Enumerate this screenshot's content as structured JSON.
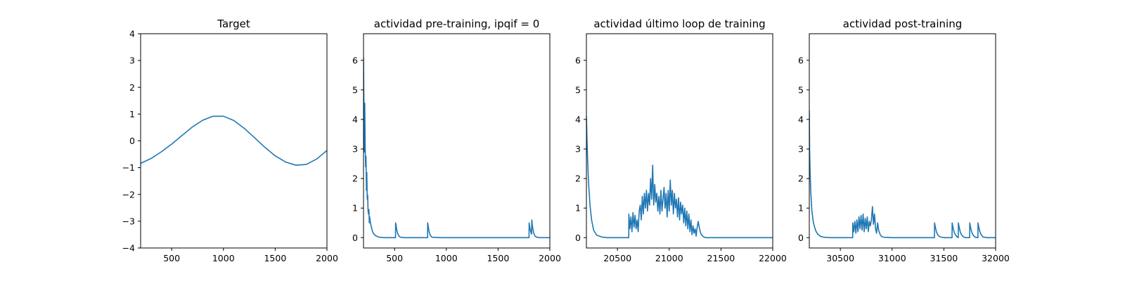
{
  "figure": {
    "background": "#ffffff",
    "line_color": "#1f77b4"
  },
  "chart_data": [
    {
      "type": "line",
      "title": "Target",
      "xlabel": "",
      "ylabel": "",
      "xlim": [
        200,
        2000
      ],
      "ylim": [
        -4,
        4
      ],
      "xticks": [
        500,
        1000,
        1500,
        2000
      ],
      "yticks": [
        -4,
        -3,
        -2,
        -1,
        0,
        1,
        2,
        3,
        4
      ],
      "series": [
        {
          "x": [
            200,
            300,
            400,
            500,
            600,
            700,
            800,
            900,
            1000,
            1100,
            1200,
            1300,
            1400,
            1500,
            1600,
            1700,
            1800,
            1900,
            2000
          ],
          "y": [
            -0.84,
            -0.66,
            -0.41,
            -0.12,
            0.2,
            0.52,
            0.77,
            0.92,
            0.92,
            0.76,
            0.47,
            0.12,
            -0.24,
            -0.56,
            -0.79,
            -0.91,
            -0.88,
            -0.68,
            -0.36
          ]
        }
      ]
    },
    {
      "type": "line",
      "title": "actividad pre-training, ipqif = 0",
      "xlabel": "",
      "ylabel": "",
      "xlim": [
        200,
        2000
      ],
      "ylim": [
        -0.35,
        6.9
      ],
      "xticks": [
        500,
        1000,
        1500,
        2000
      ],
      "yticks": [
        0,
        1,
        2,
        3,
        4,
        5,
        6
      ],
      "series": [
        {
          "x": [
            200,
            204,
            208,
            212,
            216,
            220,
            224,
            228,
            232,
            236,
            240,
            244,
            248,
            252,
            256,
            260,
            265,
            270,
            280,
            290,
            300,
            320,
            340,
            360,
            400,
            450,
            509,
            510,
            515,
            520,
            530,
            545,
            560,
            600,
            700,
            819,
            820,
            825,
            830,
            840,
            855,
            870,
            950,
            1100,
            1300,
            1500,
            1700,
            1799,
            1800,
            1805,
            1812,
            1820,
            1824,
            1826,
            1830,
            1836,
            1844,
            1855,
            1870,
            1900,
            1950,
            2000
          ],
          "y": [
            6.1,
            4.3,
            2.9,
            4.55,
            3.1,
            2.4,
            2.75,
            1.6,
            2.2,
            1.3,
            1.45,
            0.9,
            0.8,
            0.95,
            0.5,
            0.7,
            0.55,
            0.45,
            0.3,
            0.18,
            0.12,
            0.06,
            0.03,
            0.01,
            0.0,
            0.0,
            0.0,
            0.5,
            0.42,
            0.28,
            0.14,
            0.04,
            0.01,
            0.0,
            0.0,
            0.0,
            0.5,
            0.4,
            0.27,
            0.12,
            0.03,
            0.01,
            0.0,
            0.0,
            0.0,
            0.0,
            0.0,
            0.0,
            0.5,
            0.38,
            0.25,
            0.15,
            0.12,
            0.6,
            0.45,
            0.3,
            0.16,
            0.06,
            0.02,
            0.0,
            0.0,
            0.0
          ]
        }
      ]
    },
    {
      "type": "line",
      "title": "actividad último loop de training",
      "xlabel": "",
      "ylabel": "",
      "xlim": [
        20200,
        22000
      ],
      "ylim": [
        -0.35,
        6.9
      ],
      "xticks": [
        20500,
        21000,
        21500,
        22000
      ],
      "yticks": [
        0,
        1,
        2,
        3,
        4,
        5,
        6
      ],
      "series": [
        {
          "x": [
            20200,
            20205,
            20212,
            20220,
            20235,
            20250,
            20270,
            20300,
            20350,
            20400,
            20500,
            20609,
            20610,
            20620,
            20630,
            20640,
            20650,
            20660,
            20670,
            20680,
            20690,
            20700,
            20710,
            20720,
            20730,
            20740,
            20750,
            20760,
            20770,
            20780,
            20790,
            20800,
            20810,
            20820,
            20830,
            20840,
            20850,
            20860,
            20870,
            20880,
            20890,
            20900,
            20910,
            20920,
            20930,
            20940,
            20950,
            20960,
            20970,
            20980,
            20990,
            21000,
            21010,
            21020,
            21030,
            21040,
            21050,
            21060,
            21070,
            21080,
            21090,
            21100,
            21110,
            21120,
            21130,
            21140,
            21150,
            21160,
            21170,
            21180,
            21190,
            21200,
            21210,
            21220,
            21230,
            21240,
            21250,
            21260,
            21270,
            21280,
            21290,
            21300,
            21310,
            21330,
            21350,
            21400,
            21500,
            21700,
            22000
          ],
          "y": [
            4.1,
            3.4,
            2.6,
            1.9,
            1.1,
            0.6,
            0.25,
            0.08,
            0.02,
            0.0,
            0.0,
            0.0,
            0.8,
            0.3,
            0.7,
            0.2,
            0.85,
            0.35,
            0.75,
            0.3,
            0.6,
            0.2,
            0.9,
            1.1,
            0.6,
            1.4,
            0.8,
            1.5,
            1.0,
            1.6,
            0.9,
            1.5,
            1.1,
            2.0,
            1.3,
            2.45,
            1.1,
            1.8,
            1.2,
            1.5,
            0.9,
            1.4,
            0.8,
            1.6,
            0.9,
            1.3,
            1.7,
            1.0,
            1.5,
            0.7,
            1.6,
            0.9,
            1.95,
            1.1,
            1.6,
            0.8,
            1.5,
            1.0,
            1.3,
            0.7,
            1.35,
            0.6,
            1.2,
            0.8,
            1.1,
            0.5,
            1.0,
            0.4,
            0.9,
            0.3,
            0.8,
            0.2,
            0.6,
            0.1,
            0.4,
            0.15,
            0.3,
            0.05,
            0.35,
            0.55,
            0.35,
            0.2,
            0.1,
            0.03,
            0.0,
            0.0,
            0.0,
            0.0,
            0.0
          ]
        }
      ]
    },
    {
      "type": "line",
      "title": "actividad post-training",
      "xlabel": "",
      "ylabel": "",
      "xlim": [
        30200,
        32000
      ],
      "ylim": [
        -0.35,
        6.9
      ],
      "xticks": [
        30500,
        31000,
        31500,
        32000
      ],
      "yticks": [
        0,
        1,
        2,
        3,
        4,
        5,
        6
      ],
      "series": [
        {
          "x": [
            30200,
            30203,
            30208,
            30215,
            30225,
            30240,
            30260,
            30280,
            30310,
            30350,
            30400,
            30500,
            30619,
            30620,
            30630,
            30640,
            30650,
            30660,
            30670,
            30680,
            30690,
            30700,
            30710,
            30720,
            30730,
            30740,
            30750,
            30760,
            30770,
            30780,
            30790,
            30800,
            30810,
            30820,
            30830,
            30840,
            30850,
            30860,
            30870,
            30885,
            30900,
            30930,
            31000,
            31200,
            31409,
            31410,
            31418,
            31428,
            31440,
            31460,
            31500,
            31579,
            31580,
            31588,
            31598,
            31610,
            31630,
            31639,
            31640,
            31648,
            31658,
            31670,
            31690,
            31720,
            31749,
            31750,
            31758,
            31768,
            31780,
            31800,
            31829,
            31830,
            31838,
            31848,
            31860,
            31880,
            31920,
            32000
          ],
          "y": [
            4.3,
            3.0,
            2.2,
            1.5,
            0.9,
            0.5,
            0.25,
            0.12,
            0.04,
            0.01,
            0.0,
            0.0,
            0.0,
            0.5,
            0.2,
            0.55,
            0.15,
            0.6,
            0.2,
            0.7,
            0.3,
            0.75,
            0.25,
            0.8,
            0.2,
            0.65,
            0.3,
            0.7,
            0.2,
            0.55,
            0.4,
            0.6,
            1.05,
            0.45,
            0.8,
            0.3,
            0.15,
            0.5,
            0.25,
            0.1,
            0.03,
            0.01,
            0.0,
            0.0,
            0.0,
            0.5,
            0.35,
            0.2,
            0.1,
            0.03,
            0.0,
            0.0,
            0.5,
            0.35,
            0.2,
            0.1,
            0.02,
            0.0,
            0.5,
            0.35,
            0.2,
            0.1,
            0.02,
            0.0,
            0.0,
            0.5,
            0.35,
            0.2,
            0.1,
            0.02,
            0.0,
            0.5,
            0.35,
            0.2,
            0.1,
            0.02,
            0.0,
            0.0
          ]
        }
      ]
    }
  ]
}
